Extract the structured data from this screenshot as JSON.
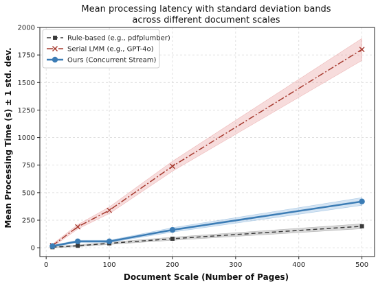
{
  "chart_data": {
    "type": "line",
    "title_lines": [
      "Mean processing latency with standard deviation bands",
      "across different document scales"
    ],
    "xlabel": "Document Scale (Number of Pages)",
    "ylabel": "Mean Processing Time (s) ± 1 std. dev.",
    "xlim": [
      -10,
      520
    ],
    "ylim": [
      -80,
      2000
    ],
    "xticks": [
      0,
      100,
      200,
      300,
      400,
      500
    ],
    "yticks": [
      0,
      250,
      500,
      750,
      1000,
      1250,
      1500,
      1750,
      2000
    ],
    "grid": true,
    "legend_position": "top-left",
    "x": [
      10,
      50,
      100,
      200,
      500
    ],
    "series": [
      {
        "name": "Rule-based (e.g., pdfplumber)",
        "values": [
          5,
          18,
          40,
          82,
          195
        ],
        "std": [
          6,
          8,
          10,
          14,
          22
        ],
        "color": "#3a3a3a",
        "band_color": "#808080",
        "dash": "6,4",
        "marker": "square",
        "line_width": 1.5
      },
      {
        "name": "Serial LMM (e.g., GPT-4o)",
        "values": [
          20,
          190,
          340,
          740,
          1800
        ],
        "std": [
          12,
          20,
          30,
          45,
          100
        ],
        "color": "#a63a2f",
        "band_color": "#e38a8a",
        "dash": "9,3,2,3",
        "marker": "x",
        "line_width": 1.5
      },
      {
        "name": "Ours (Concurrent Stream)",
        "values": [
          15,
          58,
          58,
          162,
          420
        ],
        "std": [
          8,
          10,
          10,
          20,
          35
        ],
        "color": "#3b7cb5",
        "band_color": "#6fa6d6",
        "dash": "",
        "marker": "circle",
        "line_width": 2.5
      }
    ]
  }
}
